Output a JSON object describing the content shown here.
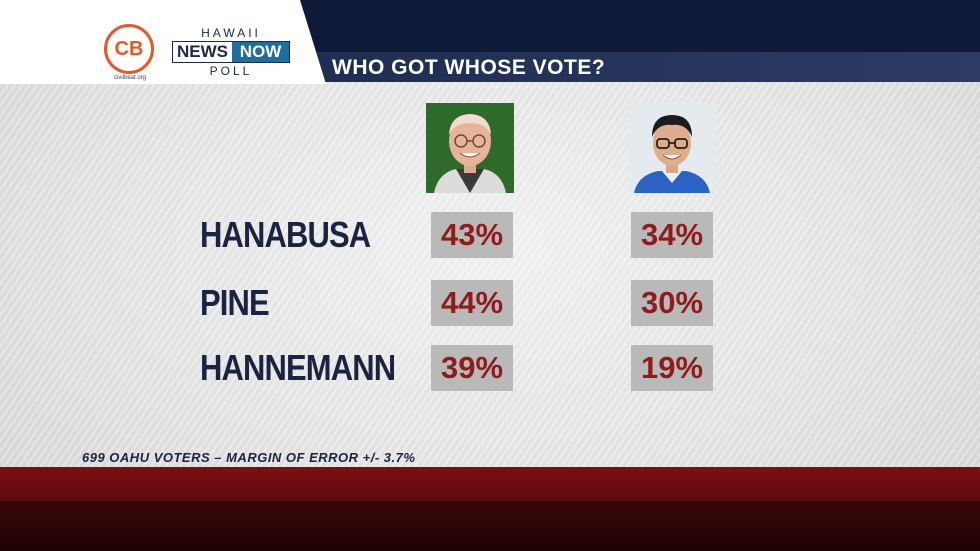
{
  "header": {
    "title": "WHO GOT WHOSE VOTE?",
    "partner_logo": {
      "initials": "CB",
      "domain": "civilbeat.org"
    },
    "station_logo": {
      "top": "HAWAII",
      "news": "NEWS",
      "now": "NOW",
      "bottom": "POLL"
    }
  },
  "candidates": [
    {
      "name": "HANABUSA",
      "values": [
        "43%",
        "34%"
      ]
    },
    {
      "name": "PINE",
      "values": [
        "44%",
        "30%"
      ]
    },
    {
      "name": "HANNEMANN",
      "values": [
        "39%",
        "19%"
      ]
    }
  ],
  "footnote": "699 OAHU VOTERS – MARGIN OF ERROR +/- 3.7%",
  "colors": {
    "header_dark": "#0f1a38",
    "title_bar": "#1f2d52",
    "name_text": "#1b2340",
    "percent_text": "#8e1c1c",
    "percent_box": "#b9b9b9",
    "bottom_band": "#7a0f12",
    "logo_orange": "#e25a2b"
  }
}
